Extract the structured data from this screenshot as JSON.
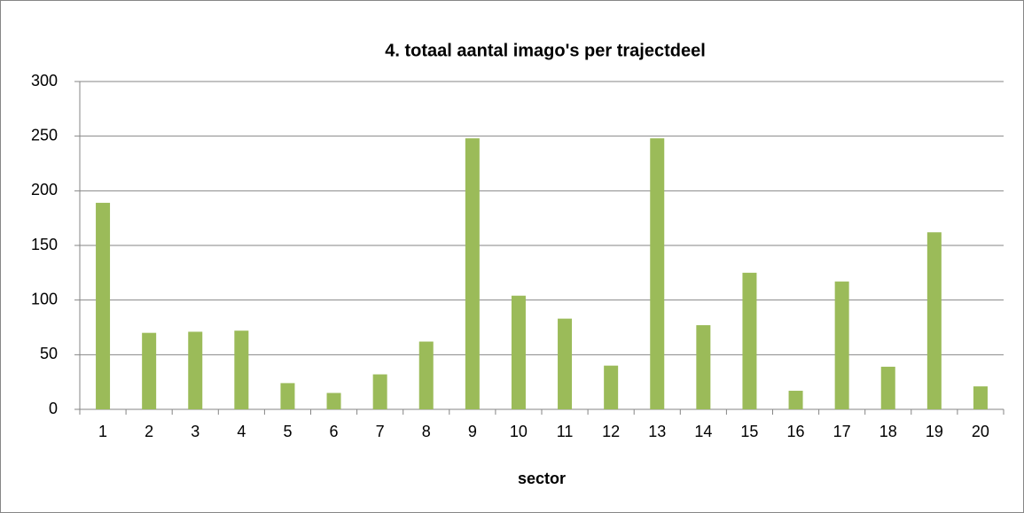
{
  "chart_data": {
    "type": "bar",
    "title": "4. totaal aantal imago's per trajectdeel",
    "x_label": "sector",
    "categories": [
      "1",
      "2",
      "3",
      "4",
      "5",
      "6",
      "7",
      "8",
      "9",
      "10",
      "11",
      "12",
      "13",
      "14",
      "15",
      "16",
      "17",
      "18",
      "19",
      "20"
    ],
    "values": [
      189,
      70,
      71,
      72,
      24,
      15,
      32,
      62,
      248,
      104,
      83,
      40,
      248,
      77,
      125,
      17,
      117,
      39,
      162,
      21
    ],
    "color": "#9bbb59",
    "ylim": [
      0,
      300
    ],
    "yticks": [
      0,
      50,
      100,
      150,
      200,
      250,
      300
    ],
    "grid": true
  }
}
